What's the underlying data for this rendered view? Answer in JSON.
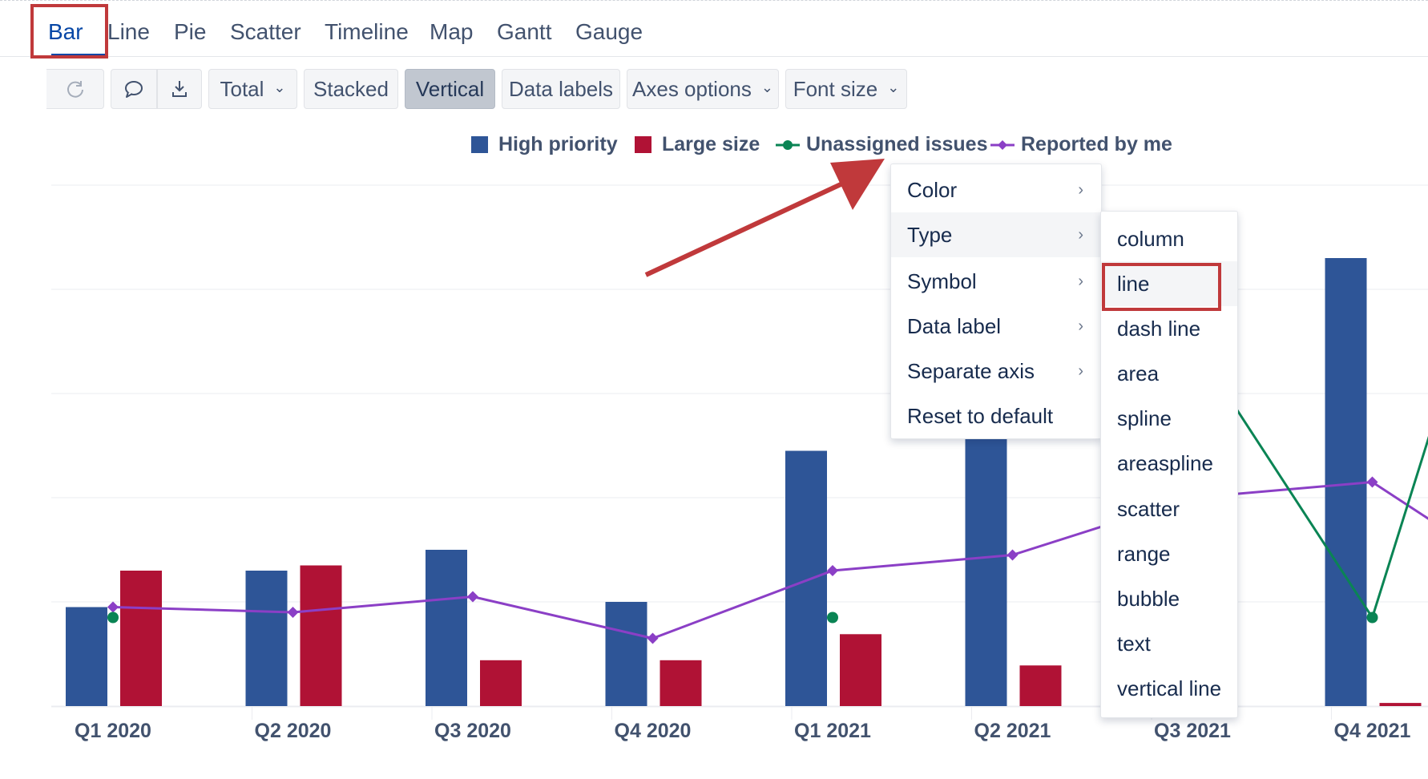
{
  "tabs": [
    {
      "label": "Bar",
      "active": true
    },
    {
      "label": "Line"
    },
    {
      "label": "Pie"
    },
    {
      "label": "Scatter"
    },
    {
      "label": "Timeline"
    },
    {
      "label": "Map"
    },
    {
      "label": "Gantt"
    },
    {
      "label": "Gauge"
    }
  ],
  "toolbar": {
    "refresh_icon": "refresh-icon",
    "comment_icon": "comment-icon",
    "download_icon": "download-icon",
    "total_label": "Total",
    "stacked_label": "Stacked",
    "vertical_label": "Vertical",
    "data_labels_label": "Data labels",
    "axes_options_label": "Axes options",
    "font_size_label": "Font size"
  },
  "context_menu": {
    "items": [
      "Color",
      "Type",
      "Symbol",
      "Data label",
      "Separate axis",
      "Reset to default"
    ],
    "highlighted": "Type"
  },
  "type_submenu": {
    "items": [
      "column",
      "line",
      "dash line",
      "area",
      "spline",
      "areaspline",
      "scatter",
      "range",
      "bubble",
      "text",
      "vertical line"
    ],
    "highlighted": "line"
  },
  "colors": {
    "high_priority": "#2e5597",
    "large_size": "#b01235",
    "unassigned": "#0a8454",
    "reported": "#8b3fc6",
    "accent": "#0747a6",
    "annotation": "#c0393b"
  },
  "chart_data": {
    "type": "bar",
    "categories": [
      "Q1 2020",
      "Q2 2020",
      "Q3 2020",
      "Q4 2020",
      "Q1 2021",
      "Q2 2021",
      "Q3 2021",
      "Q4 2021"
    ],
    "series": [
      {
        "name": "High priority",
        "type": "column",
        "values": [
          9.5,
          13,
          15,
          10,
          24.5,
          27,
          31,
          43
        ]
      },
      {
        "name": "Large size",
        "type": "column",
        "values": [
          13,
          13.5,
          4.4,
          4.4,
          6.9,
          3.9,
          0,
          0.3
        ]
      },
      {
        "name": "Unassigned issues",
        "type": "line",
        "values": [
          8.5,
          null,
          null,
          null,
          8.5,
          null,
          35,
          8.5
        ]
      },
      {
        "name": "Reported by me",
        "type": "line",
        "values": [
          9.5,
          9,
          10.5,
          6.5,
          13,
          14.5,
          20,
          21.5
        ]
      }
    ],
    "ylim": [
      0,
      50
    ],
    "grid": true,
    "legend": "top-right"
  }
}
